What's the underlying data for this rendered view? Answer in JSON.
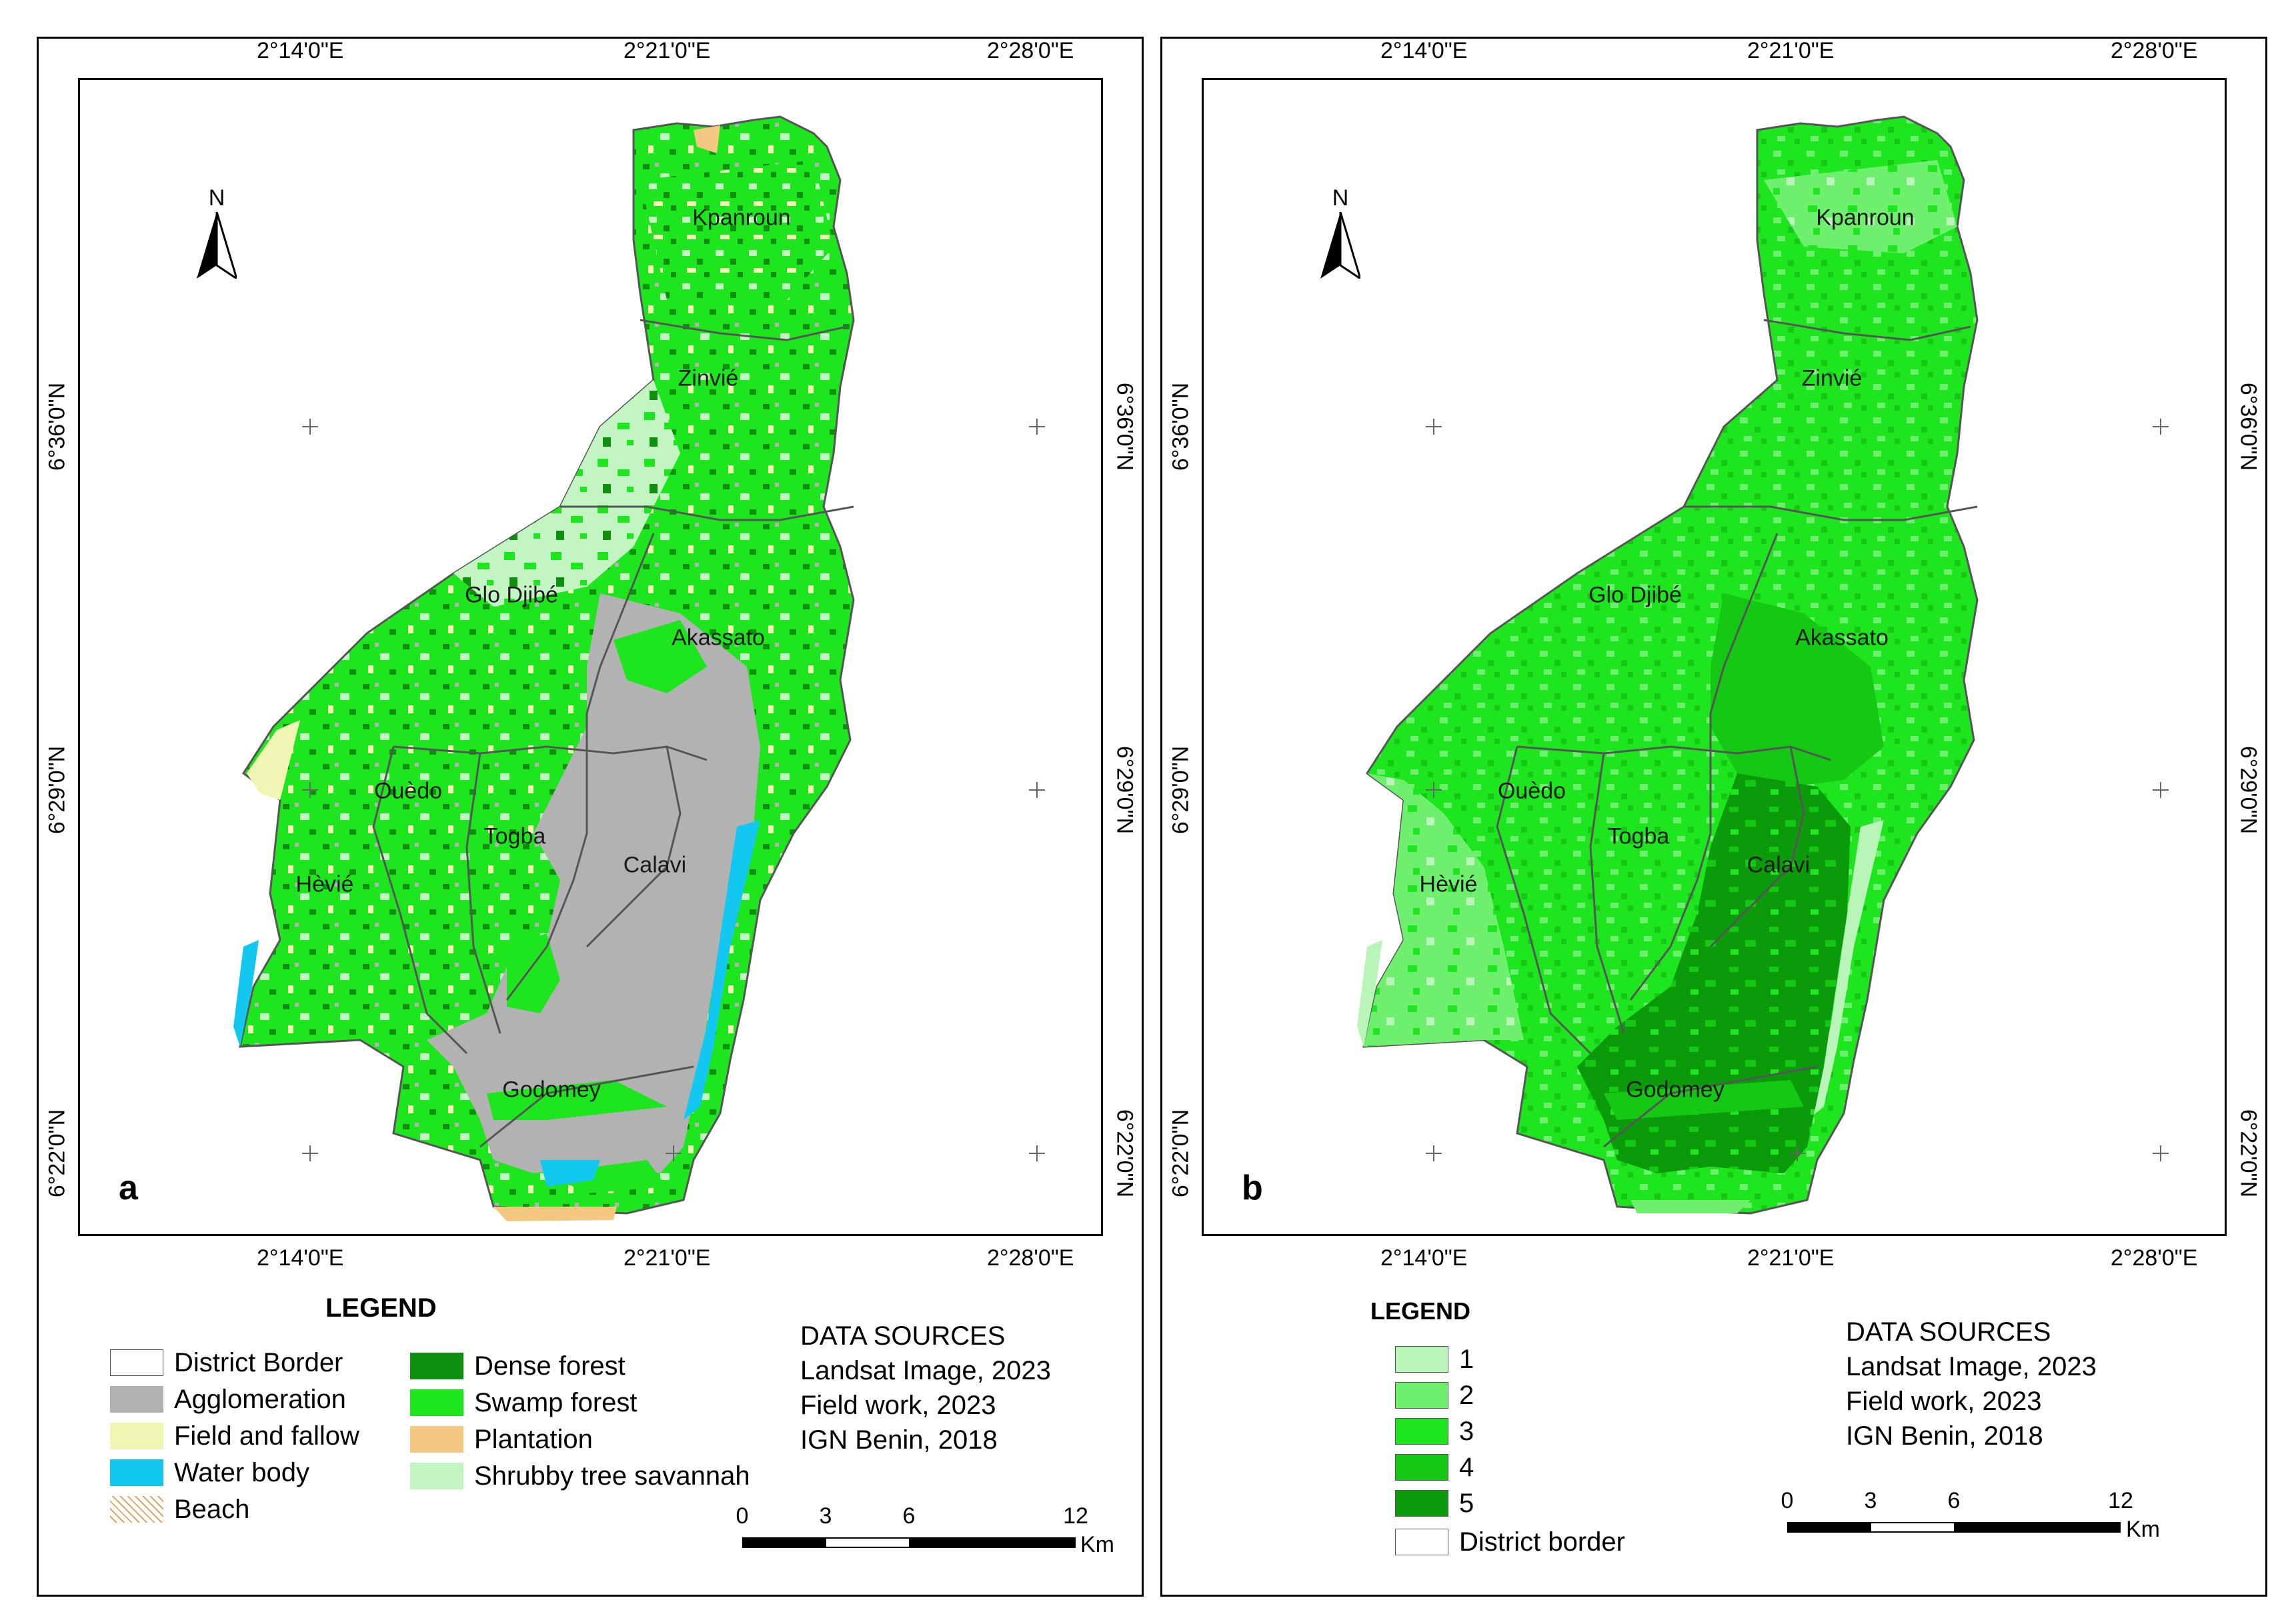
{
  "coords": {
    "lon_labels": [
      "2°14'0\"E",
      "2°21'0\"E",
      "2°28'0\"E"
    ],
    "lat_labels": [
      "6°36'0\"N",
      "6°29'0\"N",
      "6°22'0\"N"
    ]
  },
  "north_label": "N",
  "districts": [
    "Kpanroun",
    "Zinvié",
    "Glo Djibé",
    "Akassato",
    "Ouèdo",
    "Togba",
    "Calavi",
    "Hèvié",
    "Godomey"
  ],
  "panel_a": {
    "letter": "a",
    "legend_title": "LEGEND",
    "legend_items": [
      {
        "label": "District Border",
        "color": "#ffffff"
      },
      {
        "label": "Agglomeration",
        "color": "#b2b2b2"
      },
      {
        "label": "Field and fallow",
        "color": "#f0f5b4"
      },
      {
        "label": "Water body",
        "color": "#12c8f0"
      },
      {
        "label": "Beach",
        "color": "#e8c89a"
      },
      {
        "label": "Dense forest",
        "color": "#0e8f0e"
      },
      {
        "label": "Swamp forest",
        "color": "#1ee61e"
      },
      {
        "label": "Plantation",
        "color": "#f5c882"
      },
      {
        "label": "Shrubby tree savannah",
        "color": "#c3f5c3"
      }
    ],
    "sources_title": "DATA SOURCES",
    "sources": [
      "Landsat Image, 2023",
      "Field work, 2023",
      "IGN Benin, 2018"
    ],
    "scale_ticks": [
      "0",
      "3",
      "6",
      "12"
    ],
    "scale_unit": "Km"
  },
  "panel_b": {
    "letter": "b",
    "legend_title": "LEGEND",
    "legend_items": [
      {
        "label": "1",
        "color": "#b9f5b9"
      },
      {
        "label": "2",
        "color": "#6ef06e"
      },
      {
        "label": "3",
        "color": "#1ee61e"
      },
      {
        "label": "4",
        "color": "#14c814"
      },
      {
        "label": "5",
        "color": "#0a9a0a"
      },
      {
        "label": "District border",
        "color": "#ffffff"
      }
    ],
    "sources_title": "DATA SOURCES",
    "sources": [
      "Landsat Image, 2023",
      "Field work, 2023",
      "IGN Benin, 2018"
    ],
    "scale_ticks": [
      "0",
      "3",
      "6",
      "12"
    ],
    "scale_unit": "Km"
  },
  "colors": {
    "frame": "#000000",
    "district_line": "#555555"
  }
}
